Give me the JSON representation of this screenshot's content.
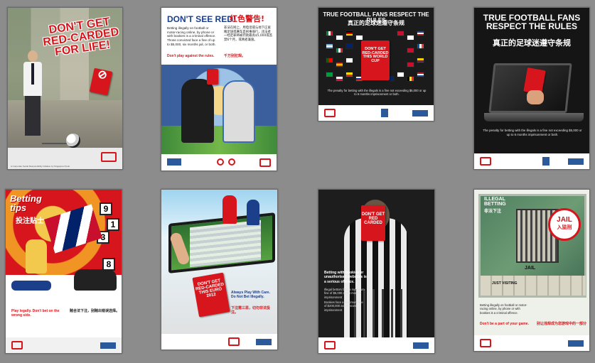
{
  "posters": [
    {
      "id": "p1",
      "headline": "Don't get red-carded for life!",
      "card_text": "",
      "body": "",
      "footer": "A Corporate Social Responsibility Initiative by Singapore Pools"
    },
    {
      "id": "p2",
      "headline_en": "Don't see red!",
      "headline_cn": "红色警告!",
      "body_en": "Betting illegally on football or motor-racing online, by phone or with bookies is a criminal offence. Those convicted face a fine of up to $5,000, six months jail, or both.",
      "tagline_en": "Don't play against the rules.",
      "body_cn": "非法在网上、用电话或与地下庄家赌足球或赛车是刑事罪行，违法者一经定罪将被罚款最高$5,000或监禁6个月，或两者兼施。",
      "tagline_cn": "千万别犯规。"
    },
    {
      "id": "p3",
      "headline_en": "True football fans respect the rules",
      "headline_cn": "真正的足球迷遵守条规",
      "card_text": "Don't get red-carded this World Cup",
      "body": "The penalty for betting with the illegals is a fine not exceeding $5,000 or up to 6 months imprisonment or both."
    },
    {
      "id": "p4",
      "headline_en": "True football fans respect the rules",
      "headline_cn": "真正的足球迷遵守条规",
      "body": "The penalty for betting with the illegals is a fine not exceeding $5,000 or up to 6 months imprisonment or both."
    },
    {
      "id": "p5",
      "headline_en": "Betting tips",
      "headline_cn": "投注贴士",
      "numbers": [
        "9",
        "1",
        "3",
        "8"
      ],
      "tagline_en": "Play legally. Don't bet on the wrong side.",
      "tagline_cn": "赌合法下注，别赌出错误选择。"
    },
    {
      "id": "p6",
      "card_text": "Don't get red-carded this Euro 2012",
      "body_en": "Always Play With Care. Do Not Bet Illegally.",
      "tagline_cn": "下注需三思，切勿非法投注。"
    },
    {
      "id": "p7",
      "card_text": "Don't get red carded",
      "body_en": "Betting with bookies or unauthorised websites is a serious offence.",
      "penalty_1": "Illegal bettors face a maximum fine of $5,000 and 6 months imprisonment",
      "penalty_2": "Bookies face a maximum fine of $200,000 and 5 years imprisonment"
    },
    {
      "id": "p8",
      "headline_left": "Illegal Betting",
      "headline_cn_left": "非法下注",
      "jail_en": "Jail",
      "jail_cn": "入监刑",
      "board_label": "Just Visiting",
      "board_label_jail": "Jail",
      "body_en": "Betting illegally on football or motor-racing online, by phone or with bookies is a criminal offence.",
      "tagline_en": "Don't be a part of your game.",
      "tagline_cn": "别让违规成为您游戏中的一部分"
    }
  ],
  "colors": {
    "background": "#8c8c8c",
    "red": "#d6161c",
    "dark": "#1b1b1b"
  }
}
